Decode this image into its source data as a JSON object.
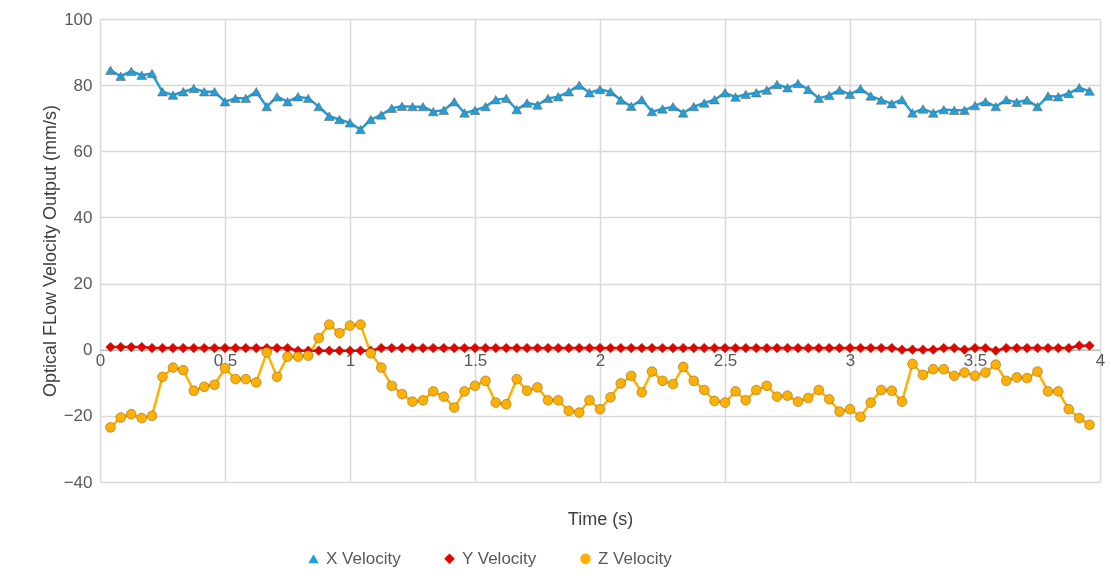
{
  "chart_data": {
    "type": "line",
    "xlabel": "Time (s)",
    "ylabel": "Optical FLow Velocity Output (mm/s)",
    "x": [
      0.042,
      0.083,
      0.125,
      0.167,
      0.208,
      0.25,
      0.292,
      0.333,
      0.375,
      0.417,
      0.458,
      0.5,
      0.542,
      0.583,
      0.625,
      0.667,
      0.708,
      0.75,
      0.792,
      0.833,
      0.875,
      0.917,
      0.958,
      1,
      1.042,
      1.083,
      1.125,
      1.167,
      1.208,
      1.25,
      1.292,
      1.333,
      1.375,
      1.417,
      1.458,
      1.5,
      1.542,
      1.583,
      1.625,
      1.667,
      1.708,
      1.75,
      1.792,
      1.833,
      1.875,
      1.917,
      1.958,
      2,
      2.042,
      2.083,
      2.125,
      2.167,
      2.208,
      2.25,
      2.292,
      2.333,
      2.375,
      2.417,
      2.458,
      2.5,
      2.542,
      2.583,
      2.625,
      2.667,
      2.708,
      2.75,
      2.792,
      2.833,
      2.875,
      2.917,
      2.958,
      3,
      3.042,
      3.083,
      3.125,
      3.167,
      3.208,
      3.25,
      3.292,
      3.333,
      3.375,
      3.417,
      3.458,
      3.5,
      3.542,
      3.583,
      3.625,
      3.667,
      3.708,
      3.75,
      3.792,
      3.833,
      3.875,
      3.917,
      3.958
    ],
    "series": [
      {
        "name": "X Velocity",
        "color": "#1f9fe0",
        "marker": "triangle",
        "values": [
          84.5,
          82.7,
          84.2,
          83,
          83.5,
          78,
          77,
          78,
          79,
          78,
          78,
          75,
          76,
          76,
          78,
          73.5,
          76.5,
          75,
          76.5,
          76,
          73.5,
          70.6,
          69.6,
          68.6,
          66.6,
          69.6,
          71,
          73,
          73.6,
          73.5,
          73.5,
          72,
          72.4,
          75,
          71.6,
          72.4,
          73.5,
          75.6,
          76,
          72.6,
          74.6,
          74,
          76,
          76.5,
          78,
          80,
          77.7,
          78.7,
          78,
          75.5,
          73.6,
          75.6,
          72,
          72.8,
          73.5,
          71.6,
          73.5,
          74.6,
          75.6,
          77.7,
          76.4,
          77.2,
          77.7,
          78.5,
          80.2,
          79.2,
          80.5,
          78.7,
          76,
          76.9,
          78.5,
          77.2,
          78.9,
          76.7,
          75.5,
          74.4,
          75.6,
          71.6,
          72.8,
          71.6,
          72.6,
          72.4,
          72.4,
          73.8,
          75,
          73.5,
          75.6,
          74.8,
          75.5,
          73.5,
          76.7,
          76.5,
          77.5,
          79.2,
          78.2
        ]
      },
      {
        "name": "Y Velocity",
        "color": "#e60000",
        "marker": "diamond",
        "values": [
          0.8,
          0.8,
          0.8,
          0.8,
          0.5,
          0.5,
          0.5,
          0.5,
          0.5,
          0.5,
          0.5,
          0.5,
          0.5,
          0.5,
          0.5,
          0.5,
          0.5,
          0.5,
          -0.3,
          -0.3,
          -0.3,
          -0.3,
          -0.3,
          -0.3,
          -0.3,
          -0.3,
          0.5,
          0.5,
          0.5,
          0.5,
          0.5,
          0.5,
          0.5,
          0.5,
          0.5,
          0.5,
          0.5,
          0.5,
          0.5,
          0.5,
          0.5,
          0.5,
          0.5,
          0.5,
          0.5,
          0.5,
          0.5,
          0.5,
          0.5,
          0.5,
          0.5,
          0.5,
          0.5,
          0.5,
          0.5,
          0.5,
          0.5,
          0.5,
          0.5,
          0.5,
          0.5,
          0.5,
          0.5,
          0.5,
          0.5,
          0.5,
          0.5,
          0.5,
          0.5,
          0.5,
          0.5,
          0.5,
          0.5,
          0.5,
          0.5,
          0.5,
          0,
          0,
          0,
          0,
          0.5,
          0.5,
          0,
          0.5,
          0.5,
          -0.3,
          0.5,
          0.5,
          0.5,
          0.5,
          0.5,
          0.5,
          0.5,
          1.2,
          1.2
        ]
      },
      {
        "name": "Z Velocity",
        "color": "#ffb000",
        "marker": "circle",
        "values": [
          -23.5,
          -20.5,
          -19.5,
          -20.7,
          -20,
          -8.2,
          -5.4,
          -6.2,
          -12.4,
          -11.2,
          -10.6,
          -5.6,
          -8.9,
          -8.9,
          -9.9,
          -0.8,
          -8.2,
          -2.1,
          -2.1,
          -1.8,
          3.5,
          7.6,
          5,
          7.3,
          7.6,
          -1.1,
          -5.4,
          -10.9,
          -13.4,
          -15.7,
          -15.3,
          -12.6,
          -14.2,
          -17.5,
          -12.6,
          -10.9,
          -9.4,
          -16,
          -16.5,
          -8.9,
          -12.4,
          -11.4,
          -15.3,
          -15.3,
          -18.5,
          -19,
          -15.3,
          -18,
          -14.4,
          -10.2,
          -7.9,
          -12.9,
          -6.6,
          -9.4,
          -10.4,
          -5.2,
          -9.4,
          -12.2,
          -15.5,
          -16,
          -12.6,
          -15.3,
          -12.2,
          -10.9,
          -14.2,
          -13.9,
          -15.7,
          -14.6,
          -12.2,
          -15,
          -18.7,
          -18,
          -20.3,
          -16,
          -12.2,
          -12.4,
          -15.7,
          -4.3,
          -7.6,
          -5.9,
          -5.9,
          -7.9,
          -6.9,
          -7.9,
          -6.9,
          -4.5,
          -9.4,
          -8.4,
          -8.6,
          -6.6,
          -12.6,
          -12.6,
          -18,
          -20.7,
          -22.7
        ]
      }
    ],
    "xlim": [
      0,
      4
    ],
    "xticks": [
      0,
      0.5,
      1,
      1.5,
      2,
      2.5,
      3,
      3.5,
      4
    ],
    "ylim": [
      -40,
      100
    ],
    "yticks": [
      -40,
      -20,
      0,
      20,
      40,
      60,
      80,
      100
    ],
    "grid": true,
    "legend": "bottom",
    "line_style": "solid"
  }
}
